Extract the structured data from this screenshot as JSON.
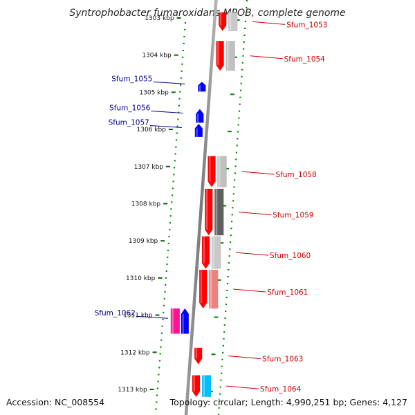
{
  "title": "Syntrophobacter fumaroxidans MPOB, complete genome",
  "ticks": [
    {
      "label": "1303 kbp",
      "faded": true
    },
    {
      "label": "1304 kbp"
    },
    {
      "label": "1305 kbp"
    },
    {
      "label": "1306 kbp"
    },
    {
      "label": "1307 kbp"
    },
    {
      "label": "1308 kbp"
    },
    {
      "label": "1309 kbp"
    },
    {
      "label": "1310 kbp"
    },
    {
      "label": "1311 kbp"
    },
    {
      "label": "1312 kbp"
    },
    {
      "label": "1313 kbp"
    }
  ],
  "genes": [
    {
      "label": "Sfum_1053",
      "strand": "+",
      "start": 1302.85,
      "end": 1303.35,
      "color": "#ff0000",
      "cog_color": "#c8c8c8"
    },
    {
      "label": "Sfum_1054",
      "strand": "+",
      "start": 1303.62,
      "end": 1304.42,
      "color": "#ff0000",
      "cog_color": "#c0c0c0"
    },
    {
      "label": "Sfum_1055",
      "strand": "-",
      "start": 1304.72,
      "end": 1304.98,
      "color": "#0000ff"
    },
    {
      "label": "Sfum_1056",
      "strand": "-",
      "start": 1305.45,
      "end": 1305.82,
      "color": "#0000ff"
    },
    {
      "label": "Sfum_1057",
      "strand": "-",
      "start": 1305.85,
      "end": 1306.2,
      "color": "#0000ff"
    },
    {
      "label": "Sfum_1058",
      "strand": "+",
      "start": 1306.72,
      "end": 1307.55,
      "color": "#ff0000",
      "cog_color": "#c0c0c0"
    },
    {
      "label": "Sfum_1059",
      "strand": "+",
      "start": 1307.6,
      "end": 1308.85,
      "color": "#ff0000",
      "cog_color": "#606060"
    },
    {
      "label": "Sfum_1060",
      "strand": "+",
      "start": 1308.88,
      "end": 1309.75,
      "color": "#ff0000",
      "cog_color": "#c8c8c8"
    },
    {
      "label": "Sfum_1061",
      "strand": "+",
      "start": 1309.78,
      "end": 1310.82,
      "color": "#ff0000",
      "cog_color": "#f08080"
    },
    {
      "label": "Sfum_1062",
      "strand": "-",
      "start": 1310.82,
      "end": 1311.5,
      "color": "#0000ff",
      "cog_color": "#ff1493"
    },
    {
      "label": "Sfum_1063",
      "strand": "+",
      "start": 1311.88,
      "end": 1312.32,
      "color": "#ff0000"
    },
    {
      "label": "Sfum_1064",
      "strand": "+",
      "start": 1312.62,
      "end": 1313.2,
      "color": "#ff0000",
      "cog_color": "#00bfff"
    }
  ],
  "footer": {
    "accession": "Accession: NC_008554",
    "summary": "Topology: circular; Length: 4,990,251 bp; Genes: 4,127"
  }
}
